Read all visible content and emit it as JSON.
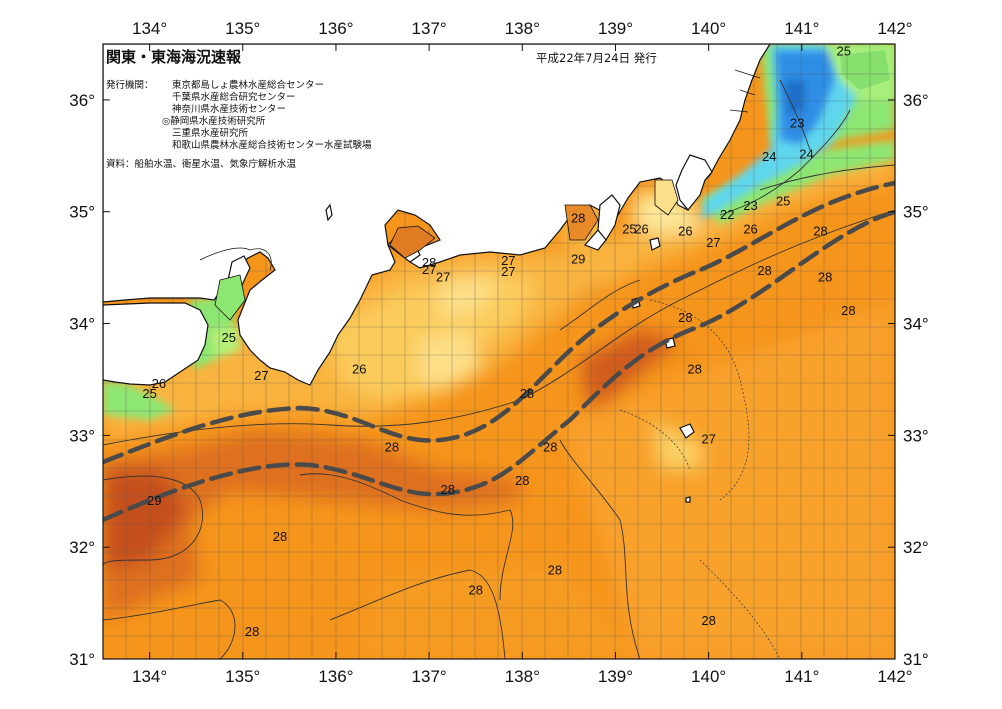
{
  "header": {
    "title": "関東・東海海況速報",
    "date": "平成22年7月24日 発行",
    "issuers_label": "発行機関：",
    "issuers": [
      "東京都島しょ農林水産総合センター",
      "千葉県水産総合研究センター",
      "神奈川県水産技術センター",
      "◎静岡県水産技術研究所",
      "三重県水産研究所",
      "和歌山県農林水産総合技術センター水産試験場"
    ],
    "source": "資料：船舶水温、衛星水温、気象庁解析水温"
  },
  "axes": {
    "lon_ticks": [
      "134°",
      "135°",
      "136°",
      "137°",
      "138°",
      "139°",
      "140°",
      "141°",
      "142°"
    ],
    "lat_ticks": [
      "36°",
      "35°",
      "34°",
      "33°",
      "32°",
      "31°"
    ]
  },
  "chart_data": {
    "type": "heatmap",
    "variable": "sea surface temperature (°C)",
    "lon_range": [
      133.5,
      142
    ],
    "lat_range": [
      31,
      36.5
    ],
    "grid": true,
    "isotherm_labels": [
      {
        "text": "25",
        "lon": 141.45,
        "lat": 36.44
      },
      {
        "text": "23",
        "lon": 140.95,
        "lat": 35.8
      },
      {
        "text": "24",
        "lon": 140.65,
        "lat": 35.5
      },
      {
        "text": "24",
        "lon": 141.05,
        "lat": 35.52
      },
      {
        "text": "23",
        "lon": 140.45,
        "lat": 35.06
      },
      {
        "text": "25",
        "lon": 140.8,
        "lat": 35.1
      },
      {
        "text": "22",
        "lon": 140.2,
        "lat": 34.98
      },
      {
        "text": "26",
        "lon": 140.45,
        "lat": 34.85
      },
      {
        "text": "28",
        "lon": 141.2,
        "lat": 34.83
      },
      {
        "text": "27",
        "lon": 140.05,
        "lat": 34.73
      },
      {
        "text": "26",
        "lon": 139.75,
        "lat": 34.83
      },
      {
        "text": "26",
        "lon": 139.28,
        "lat": 34.85
      },
      {
        "text": "25",
        "lon": 139.15,
        "lat": 34.85
      },
      {
        "text": "28",
        "lon": 138.6,
        "lat": 34.95
      },
      {
        "text": "29",
        "lon": 138.6,
        "lat": 34.58
      },
      {
        "text": "27",
        "lon": 137.85,
        "lat": 34.57
      },
      {
        "text": "27",
        "lon": 137.85,
        "lat": 34.47
      },
      {
        "text": "28",
        "lon": 137.0,
        "lat": 34.55
      },
      {
        "text": "27",
        "lon": 137.0,
        "lat": 34.49
      },
      {
        "text": "27",
        "lon": 137.15,
        "lat": 34.42
      },
      {
        "text": "28",
        "lon": 140.6,
        "lat": 34.48
      },
      {
        "text": "28",
        "lon": 141.25,
        "lat": 34.42
      },
      {
        "text": "28",
        "lon": 141.5,
        "lat": 34.12
      },
      {
        "text": "28",
        "lon": 139.75,
        "lat": 34.06
      },
      {
        "text": "25",
        "lon": 134.85,
        "lat": 33.88
      },
      {
        "text": "26",
        "lon": 136.25,
        "lat": 33.6
      },
      {
        "text": "27",
        "lon": 135.2,
        "lat": 33.54
      },
      {
        "text": "26",
        "lon": 134.1,
        "lat": 33.47
      },
      {
        "text": "25",
        "lon": 134.0,
        "lat": 33.38
      },
      {
        "text": "28",
        "lon": 139.85,
        "lat": 33.6
      },
      {
        "text": "28",
        "lon": 138.05,
        "lat": 33.38
      },
      {
        "text": "27",
        "lon": 140.0,
        "lat": 32.97
      },
      {
        "text": "28",
        "lon": 136.6,
        "lat": 32.9
      },
      {
        "text": "28",
        "lon": 138.3,
        "lat": 32.9
      },
      {
        "text": "28",
        "lon": 138.0,
        "lat": 32.6
      },
      {
        "text": "28",
        "lon": 137.2,
        "lat": 32.52
      },
      {
        "text": "29",
        "lon": 134.05,
        "lat": 32.42
      },
      {
        "text": "28",
        "lon": 135.4,
        "lat": 32.1
      },
      {
        "text": "28",
        "lon": 138.35,
        "lat": 31.8
      },
      {
        "text": "28",
        "lon": 137.5,
        "lat": 31.62
      },
      {
        "text": "28",
        "lon": 135.1,
        "lat": 31.25
      },
      {
        "text": "28",
        "lon": 140.0,
        "lat": 31.35
      }
    ]
  },
  "colors": {
    "warm_orange": "#f6951c",
    "dark_orange": "#d4661c",
    "light_orange": "#f9b440",
    "yellow": "#fbd56a",
    "pale_yellow": "#fde89a",
    "green": "#8ee672",
    "cyan": "#5fd6ee",
    "blue": "#2f8ee6",
    "current_line": "#4a4a4a"
  }
}
